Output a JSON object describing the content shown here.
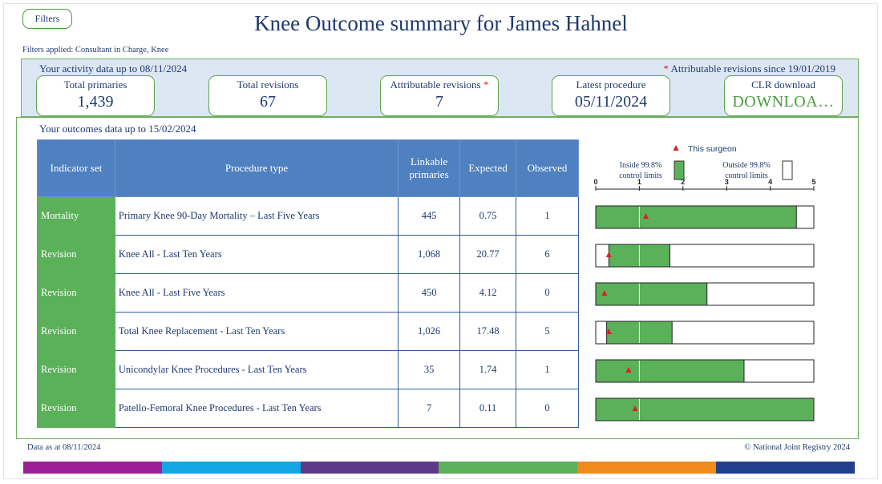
{
  "filters_button": "Filters",
  "title": "Knee Outcome summary for James Hahnel",
  "filters_applied": "Filters applied: Consultant in Charge, Knee",
  "activity": {
    "label": "Your activity data up to 08/11/2024",
    "attrib_star": "*",
    "attrib_note": "Attributable revisions since 19/01/2019",
    "cards": [
      {
        "label": "Total primaries",
        "value": "1,439"
      },
      {
        "label": "Total revisions",
        "value": "67"
      },
      {
        "label": "Attributable revisions",
        "star": "*",
        "value": "7"
      },
      {
        "label": "Latest procedure",
        "value": "05/11/2024"
      },
      {
        "label": "CLR download",
        "value": "DOWNLOA…"
      }
    ]
  },
  "outcomes": {
    "label": "Your outcomes data up to 15/02/2024",
    "headers": {
      "indicator": "Indicator set",
      "procedure": "Procedure type",
      "linkable": "Linkable primaries",
      "expected": "Expected",
      "observed": "Observed"
    },
    "rows": [
      {
        "indicator": "Mortality",
        "procedure": "Primary Knee 90-Day Mortality – Last Five Years",
        "linkable": "445",
        "expected": "0.75",
        "observed": "1"
      },
      {
        "indicator": "Revision",
        "procedure": "Knee All - Last Ten Years",
        "linkable": "1,068",
        "expected": "20.77",
        "observed": "6"
      },
      {
        "indicator": "Revision",
        "procedure": "Knee All - Last Five Years",
        "linkable": "450",
        "expected": "4.12",
        "observed": "0"
      },
      {
        "indicator": "Revision",
        "procedure": "Total Knee Replacement - Last Ten Years",
        "linkable": "1,026",
        "expected": "17.48",
        "observed": "5"
      },
      {
        "indicator": "Revision",
        "procedure": "Unicondylar Knee Procedures - Last Ten Years",
        "linkable": "35",
        "expected": "1.74",
        "observed": "1"
      },
      {
        "indicator": "Revision",
        "procedure": "Patello-Femoral Knee Procedures - Last Ten Years",
        "linkable": "7",
        "expected": "0.11",
        "observed": "0"
      }
    ]
  },
  "legend": {
    "surgeon": "This surgeon",
    "inside": "Inside 99.8% control limits",
    "outside": "Outside 99.8% control limits"
  },
  "chart_data": {
    "type": "bar",
    "xlim": [
      0,
      5
    ],
    "ticks": [
      "0",
      "1",
      "2",
      "3",
      "4",
      "5"
    ],
    "reference_line": 1,
    "rows": [
      {
        "lower": 0,
        "upper": 4.6,
        "surgeon": 1.15
      },
      {
        "lower": 0.3,
        "upper": 1.7,
        "surgeon": 0.3
      },
      {
        "lower": 0,
        "upper": 2.55,
        "surgeon": 0.2
      },
      {
        "lower": 0.25,
        "upper": 1.75,
        "surgeon": 0.3
      },
      {
        "lower": 0,
        "upper": 3.4,
        "surgeon": 0.75
      },
      {
        "lower": 0,
        "upper": 5,
        "surgeon": 0.9
      }
    ],
    "colors": {
      "inside": "#5bb05a",
      "outside": "#ffffff",
      "marker": "#e02020",
      "reference": "#ffffff"
    }
  },
  "footer": {
    "data_as_at": "Data as at 08/11/2024",
    "copyright": "© National Joint Registry 2024"
  },
  "color_strip": [
    "#9c1f97",
    "#13a6e3",
    "#5d3a86",
    "#5bb05a",
    "#ef8a1b",
    "#223f8e"
  ]
}
